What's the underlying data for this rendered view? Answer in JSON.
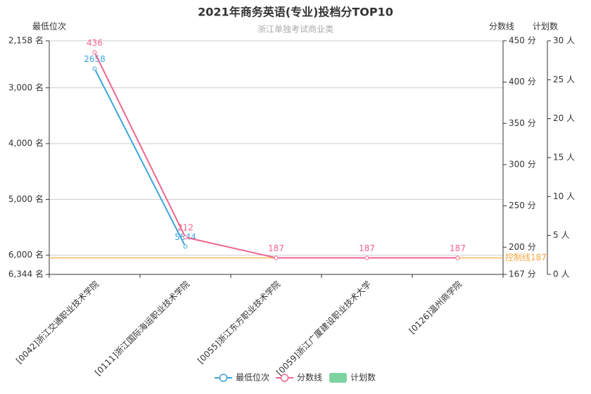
{
  "chart_data": {
    "type": "line",
    "title": "2021年商务英语(专业)投档分TOP10",
    "subtitle": "浙江单独考试商业类",
    "categories": [
      "[0042]浙江交通职业技术学院",
      "[0111]浙江国际海运职业技术学院",
      "[0055]浙江东方职业技术学院",
      "[0059]浙江广厦建设职业技术大学",
      "[0126]温州商学院"
    ],
    "ylabel": "最低位次",
    "y2label": "分数线",
    "y3label": "计划数",
    "ylim": [
      2158,
      6344
    ],
    "yinverse": true,
    "yticks": [
      {
        "value": 2158,
        "label": "2,158 名"
      },
      {
        "value": 3000,
        "label": "3,000 名"
      },
      {
        "value": 4000,
        "label": "4,000 名"
      },
      {
        "value": 5000,
        "label": "5,000 名"
      },
      {
        "value": 6000,
        "label": "6,000 名"
      },
      {
        "value": 6344,
        "label": "6,344 名"
      }
    ],
    "y2lim": [
      167,
      450
    ],
    "y2ticks": [
      {
        "value": 167,
        "label": "167 分"
      },
      {
        "value": 200,
        "label": "200 分"
      },
      {
        "value": 250,
        "label": "250 分"
      },
      {
        "value": 300,
        "label": "300 分"
      },
      {
        "value": 350,
        "label": "350 分"
      },
      {
        "value": 400,
        "label": "400 分"
      },
      {
        "value": 450,
        "label": "450 分"
      }
    ],
    "y3lim": [
      0,
      30
    ],
    "y3ticks": [
      {
        "value": 0,
        "label": "0 人"
      },
      {
        "value": 5,
        "label": "5 人"
      },
      {
        "value": 10,
        "label": "10 人"
      },
      {
        "value": 15,
        "label": "15 人"
      },
      {
        "value": 20,
        "label": "20 人"
      },
      {
        "value": 25,
        "label": "25 人"
      },
      {
        "value": 30,
        "label": "30 人"
      }
    ],
    "grid": true,
    "series": [
      {
        "name": "最低位次",
        "color": "#3ba5dd",
        "axis": "y",
        "values": [
          2658,
          5844,
          null,
          null,
          null
        ]
      },
      {
        "name": "分数线",
        "color": "#f0668c",
        "axis": "y2",
        "values": [
          436,
          212,
          187,
          187,
          187
        ]
      },
      {
        "name": "计划数",
        "color": "#7dd3a0",
        "axis": "y3",
        "type": "bar",
        "values": [
          null,
          null,
          null,
          null,
          null
        ]
      }
    ],
    "markline": {
      "axis": "y2",
      "value": 187,
      "label": "控制线187",
      "color": "#f5a742"
    }
  }
}
